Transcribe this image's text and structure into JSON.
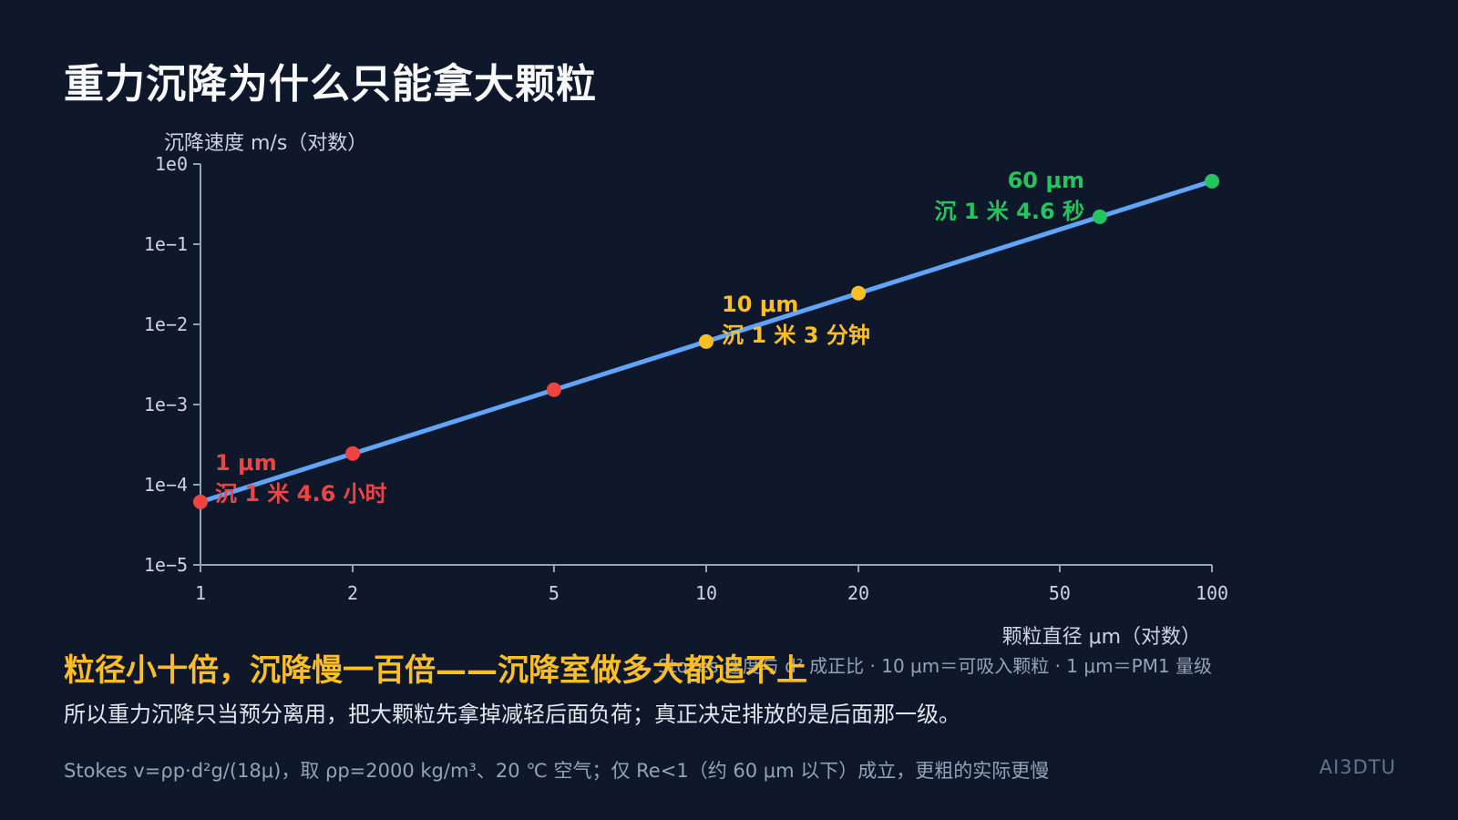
{
  "title": "重力沉降为什么只能拿大颗粒",
  "headline": "粒径小十倍，沉降慢一百倍——沉降室做多大都追不上",
  "subtext": "所以重力沉降只当预分离用，把大颗粒先拿掉减轻后面负荷；真正决定排放的是后面那一级。",
  "formula_note": "Stokes v=ρp·d²g/(18μ)，取 ρp=2000 kg/m³、20 ℃ 空气；仅 Re<1（约 60 μm 以下）成立，更粗的实际更慢",
  "brand": "AI3DTU",
  "colors": {
    "line": "#60a5fa",
    "red": "#ef4444",
    "amber": "#fbbf24",
    "green": "#22c55e",
    "axis": "#94a3b8"
  },
  "chart_data": {
    "type": "line",
    "xscale": "log",
    "yscale": "log",
    "xlim": [
      1,
      100
    ],
    "ylim": [
      1e-05,
      1
    ],
    "xlabel": "颗粒直径 μm（对数）",
    "ylabel": "沉降速度 m/s（对数）",
    "x_ticks": [
      {
        "v": 1,
        "label": "1"
      },
      {
        "v": 2,
        "label": "2"
      },
      {
        "v": 5,
        "label": "5"
      },
      {
        "v": 10,
        "label": "10"
      },
      {
        "v": 20,
        "label": "20"
      },
      {
        "v": 50,
        "label": "50"
      },
      {
        "v": 100,
        "label": "100"
      }
    ],
    "y_ticks": [
      {
        "v": 1,
        "label": "1e0"
      },
      {
        "v": 0.1,
        "label": "1e−1"
      },
      {
        "v": 0.01,
        "label": "1e−2"
      },
      {
        "v": 0.001,
        "label": "1e−3"
      },
      {
        "v": 0.0001,
        "label": "1e−4"
      },
      {
        "v": 1e-05,
        "label": "1e−5"
      }
    ],
    "curve": {
      "x_start": 1,
      "x_end": 100,
      "y_start": 6.1e-05,
      "y_end": 0.61
    },
    "points": [
      {
        "x": 1,
        "y": 6.1e-05,
        "color": "red"
      },
      {
        "x": 2,
        "y": 0.000245,
        "color": "red"
      },
      {
        "x": 5,
        "y": 0.00153,
        "color": "red"
      },
      {
        "x": 10,
        "y": 0.0061,
        "color": "amber"
      },
      {
        "x": 20,
        "y": 0.0245,
        "color": "amber"
      },
      {
        "x": 60,
        "y": 0.22,
        "color": "green"
      },
      {
        "x": 100,
        "y": 0.61,
        "color": "green"
      }
    ],
    "annotations": [
      {
        "line1": "1 μm",
        "line2": "沉 1 米 4.6 小时",
        "color": "red"
      },
      {
        "line1": "10 μm",
        "line2": "沉 1 米 3 分钟",
        "color": "amber"
      },
      {
        "line1": "60 μm",
        "line2": "沉 1 米 4.6 秒",
        "color": "green"
      }
    ],
    "footnote": "Stokes 速度与 d² 成正比 · 10 μm＝可吸入颗粒 · 1 μm＝PM1 量级"
  }
}
